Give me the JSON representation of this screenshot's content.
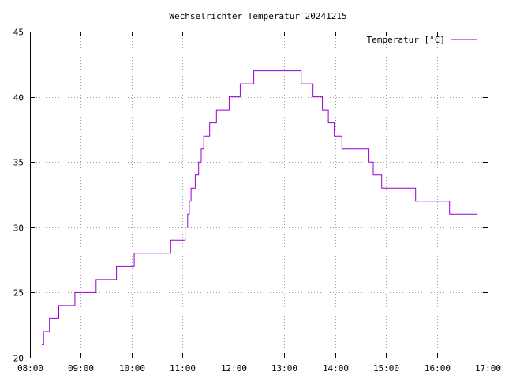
{
  "chart_data": {
    "type": "line",
    "title": "Wechselrichter Temperatur 20241215",
    "xlabel": "",
    "ylabel": "",
    "x_ticks": [
      "08:00",
      "09:00",
      "10:00",
      "11:00",
      "12:00",
      "13:00",
      "14:00",
      "15:00",
      "16:00",
      "17:00"
    ],
    "y_ticks": [
      "20",
      "25",
      "30",
      "35",
      "40",
      "45"
    ],
    "xlim": [
      "08:00",
      "17:00"
    ],
    "ylim": [
      20,
      45
    ],
    "grid": true,
    "legend_position": "top-right",
    "series": [
      {
        "name": "Temperatur [°C]",
        "color": "#9400d3",
        "step": true,
        "points": [
          [
            "08:14",
            21
          ],
          [
            "08:16",
            22
          ],
          [
            "08:23",
            23
          ],
          [
            "08:34",
            24
          ],
          [
            "08:53",
            25
          ],
          [
            "09:18",
            26
          ],
          [
            "09:42",
            27
          ],
          [
            "10:03",
            28
          ],
          [
            "10:46",
            29
          ],
          [
            "11:03",
            30
          ],
          [
            "11:06",
            31
          ],
          [
            "11:08",
            32
          ],
          [
            "11:10",
            33
          ],
          [
            "11:15",
            34
          ],
          [
            "11:19",
            35
          ],
          [
            "11:22",
            36
          ],
          [
            "11:25",
            37
          ],
          [
            "11:32",
            38
          ],
          [
            "11:40",
            39
          ],
          [
            "11:55",
            40
          ],
          [
            "12:08",
            41
          ],
          [
            "12:24",
            42
          ],
          [
            "13:20",
            41
          ],
          [
            "13:34",
            40
          ],
          [
            "13:45",
            39
          ],
          [
            "13:52",
            38
          ],
          [
            "13:59",
            37
          ],
          [
            "14:08",
            36
          ],
          [
            "14:40",
            35
          ],
          [
            "14:45",
            34
          ],
          [
            "14:55",
            33
          ],
          [
            "15:35",
            32
          ],
          [
            "16:15",
            31
          ],
          [
            "16:48",
            31
          ]
        ]
      }
    ]
  }
}
